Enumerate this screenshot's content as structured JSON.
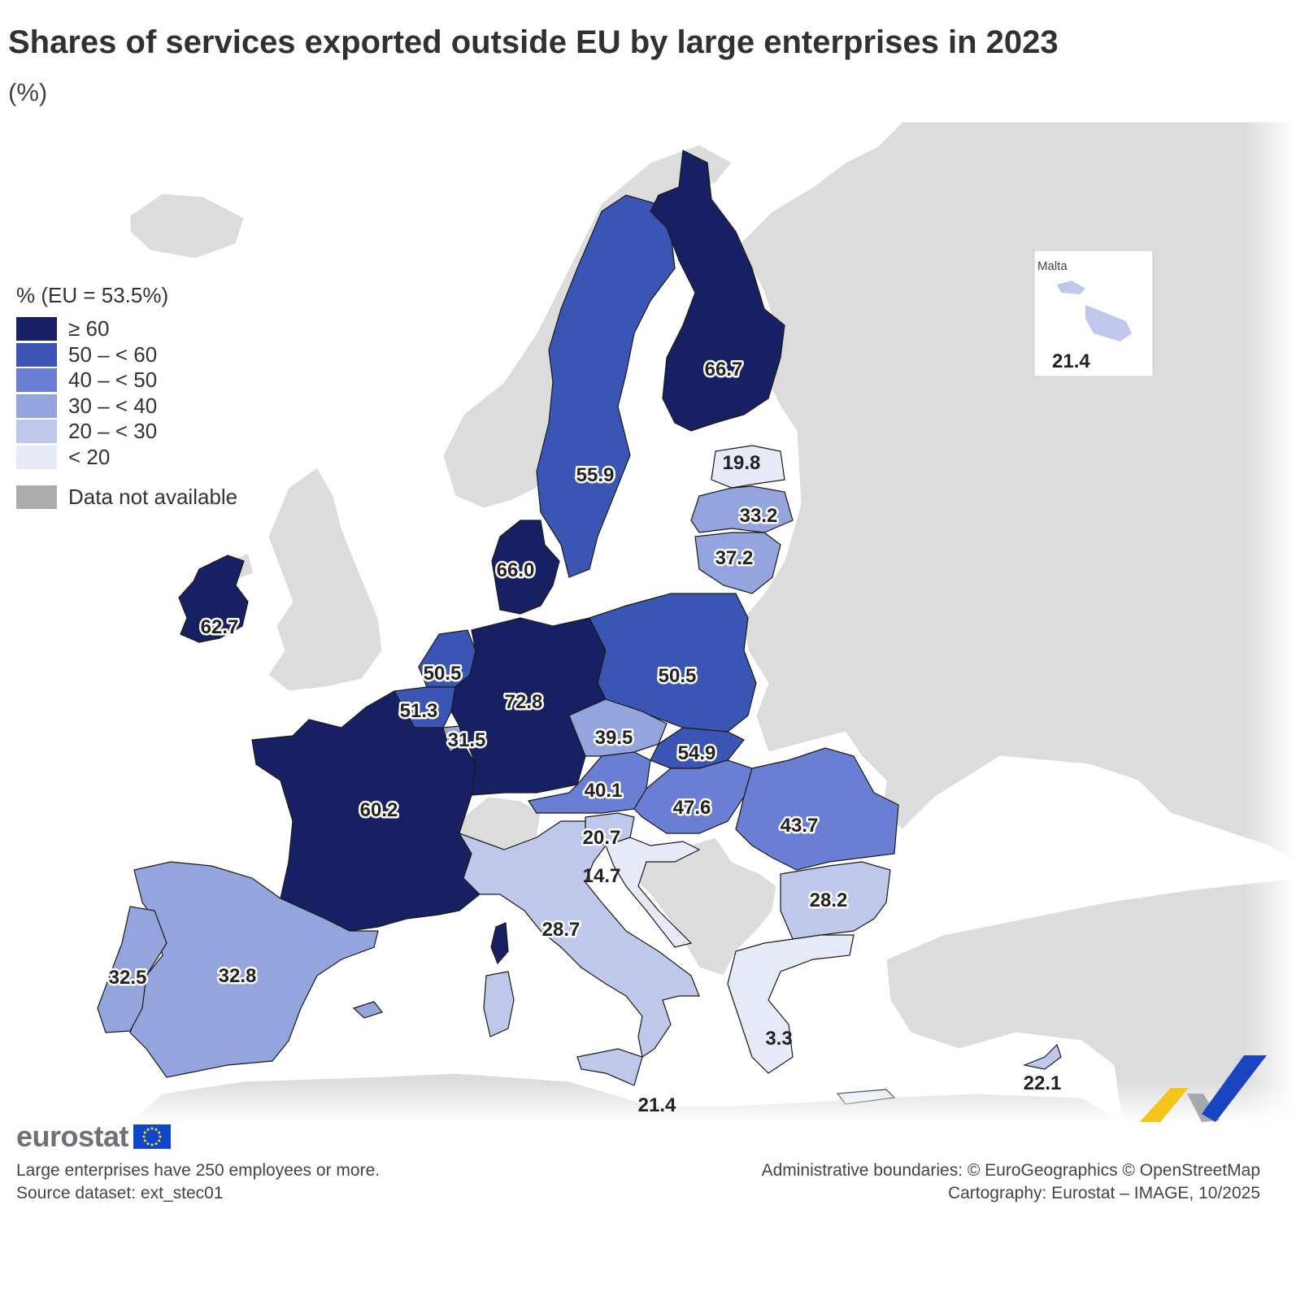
{
  "header": {
    "title": "Shares of services exported outside EU by large enterprises in 2023",
    "unit": "(%)"
  },
  "legend": {
    "title": "% (EU = 53.5%)",
    "classes": [
      {
        "label": "≥ 60",
        "color": "#172063"
      },
      {
        "label": "50 – < 60",
        "color": "#3a55b4"
      },
      {
        "label": "40 – < 50",
        "color": "#6a7fd4"
      },
      {
        "label": "30 – < 40",
        "color": "#94a4dd"
      },
      {
        "label": "20 – < 30",
        "color": "#bec8ea"
      },
      {
        "label": "< 20",
        "color": "#e6e9f6"
      }
    ],
    "na_label": "Data not available",
    "na_color": "#ababab"
  },
  "chart_data": {
    "type": "choropleth",
    "title": "Shares of services exported outside EU by large enterprises in 2023",
    "unit": "%",
    "eu_value": 53.5,
    "regions": [
      {
        "country": "Ireland",
        "value": 62.7
      },
      {
        "country": "Sweden",
        "value": 55.9
      },
      {
        "country": "Finland",
        "value": 66.7
      },
      {
        "country": "Estonia",
        "value": 19.8
      },
      {
        "country": "Latvia",
        "value": 33.2
      },
      {
        "country": "Lithuania",
        "value": 37.2
      },
      {
        "country": "Denmark",
        "value": 66.0
      },
      {
        "country": "Netherlands",
        "value": 50.5
      },
      {
        "country": "Belgium",
        "value": 51.3
      },
      {
        "country": "Luxembourg",
        "value": 31.5
      },
      {
        "country": "Germany",
        "value": 72.8
      },
      {
        "country": "Poland",
        "value": 50.5
      },
      {
        "country": "Czechia",
        "value": 39.5
      },
      {
        "country": "Slovakia",
        "value": 54.9
      },
      {
        "country": "Austria",
        "value": 40.1
      },
      {
        "country": "Hungary",
        "value": 47.6
      },
      {
        "country": "Romania",
        "value": 43.7
      },
      {
        "country": "Slovenia",
        "value": 20.7
      },
      {
        "country": "Croatia",
        "value": 14.7
      },
      {
        "country": "Bulgaria",
        "value": 28.2
      },
      {
        "country": "France",
        "value": 60.2
      },
      {
        "country": "Italy",
        "value": 28.7
      },
      {
        "country": "Spain",
        "value": 32.8
      },
      {
        "country": "Portugal",
        "value": 32.5
      },
      {
        "country": "Greece",
        "value": 3.3
      },
      {
        "country": "Malta",
        "value": 21.4
      },
      {
        "country": "Cyprus",
        "value": 22.1
      }
    ]
  },
  "inset": {
    "title": "Malta",
    "value": "21.4"
  },
  "footer": {
    "logo_text": "eurostat",
    "note": "Large enterprises have 250 employees or more.",
    "source": "Source dataset: ext_stec01",
    "boundaries": "Administrative boundaries: © EuroGeographics © OpenStreetMap",
    "cartography": "Cartography: Eurostat – IMAGE, 10/2025"
  }
}
